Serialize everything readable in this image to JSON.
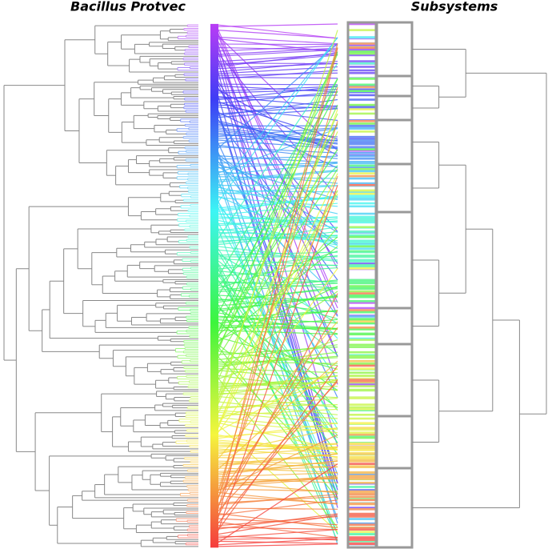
{
  "left_title": "Bacillus Protvec",
  "right_title": "Subsystems"
}
